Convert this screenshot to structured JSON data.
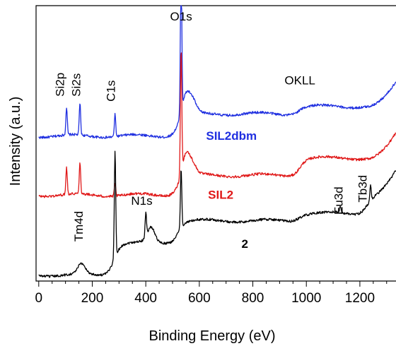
{
  "chart_data": {
    "type": "line",
    "title": "",
    "xlabel": "Binding Energy (eV)",
    "ylabel": "Intensity (a.u.)",
    "xlim": [
      -10,
      1335
    ],
    "x_ticks": [
      0,
      200,
      400,
      600,
      800,
      1000,
      1200
    ],
    "x_minor_step": 50,
    "y_ticks": [],
    "grid": false,
    "legend": "none",
    "series": [
      {
        "name": "SIL2dbm",
        "color": "#1f2fe0",
        "base": 5.9,
        "sharp_peaks": [
          [
            104,
            1.1
          ],
          [
            154,
            1.3
          ],
          [
            285,
            0.9
          ],
          [
            532,
            6.2
          ]
        ],
        "broad_features": [
          [
            550,
            0.8
          ],
          [
            575,
            0.5
          ]
        ],
        "steps": [
          [
            520,
            0.9
          ],
          [
            970,
            0.3
          ]
        ],
        "end_rise": 1.0
      },
      {
        "name": "SIL2",
        "color": "#e01818",
        "base": 3.5,
        "sharp_peaks": [
          [
            104,
            1.1
          ],
          [
            154,
            1.3
          ],
          [
            285,
            0.5
          ],
          [
            532,
            5.0
          ]
        ],
        "broad_features": [
          [
            550,
            0.9
          ],
          [
            575,
            0.4
          ]
        ],
        "steps": [
          [
            520,
            0.8
          ],
          [
            975,
            0.7
          ]
        ],
        "end_rise": 1.0
      },
      {
        "name": "2",
        "color": "#000000",
        "base": 0.25,
        "sharp_peaks": [
          [
            285,
            4.3
          ],
          [
            400,
            1.0
          ],
          [
            532,
            2.4
          ],
          [
            1127,
            0.3
          ],
          [
            1240,
            0.6
          ]
        ],
        "broad_features": [
          [
            160,
            0.4
          ],
          [
            420,
            0.6
          ]
        ],
        "steps": [
          [
            280,
            1.3
          ],
          [
            520,
            0.9
          ],
          [
            970,
            0.3
          ],
          [
            1225,
            0.7
          ]
        ],
        "end_rise": 1.0
      }
    ],
    "peak_labels": [
      {
        "text": "O1s",
        "x": 532,
        "y": 10.6,
        "rotated": false
      },
      {
        "text": "OKLL",
        "x": 976,
        "y": 8.0,
        "rotated": false
      },
      {
        "text": "Si2p",
        "x": 95,
        "y": 7.5,
        "rotated": true
      },
      {
        "text": "Si2s",
        "x": 155,
        "y": 7.5,
        "rotated": true
      },
      {
        "text": "C1s",
        "x": 285,
        "y": 7.3,
        "rotated": true
      },
      {
        "text": "N1s",
        "x": 385,
        "y": 3.1,
        "rotated": false
      },
      {
        "text": "Tm4d",
        "x": 165,
        "y": 1.6,
        "rotated": true
      },
      {
        "text": "Eu3d",
        "x": 1135,
        "y": 2.7,
        "rotated": true
      },
      {
        "text": "Tb3d",
        "x": 1225,
        "y": 3.2,
        "rotated": true
      }
    ],
    "series_labels": [
      {
        "text": "SIL2dbm",
        "x": 720,
        "y": 5.75
      },
      {
        "text": "SIL2",
        "x": 680,
        "y": 3.35
      },
      {
        "text": "2",
        "x": 770,
        "y": 1.35
      }
    ]
  }
}
